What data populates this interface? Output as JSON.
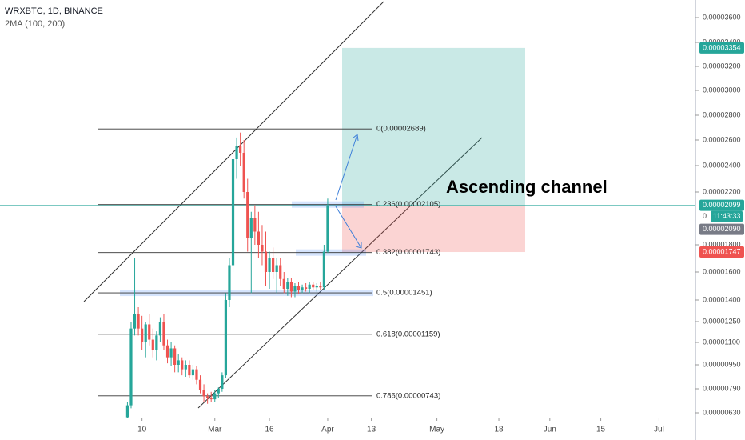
{
  "chart_data": {
    "type": "candlestick",
    "title": "WRXBTC, 1D, BINANCE",
    "subtitle": "2MA (100, 200)",
    "annotation": "Ascending channel",
    "up_color": "#26a69a",
    "down_color": "#ef5350",
    "x": [
      37,
      38,
      39,
      40,
      41,
      42,
      43,
      44,
      45,
      46,
      47,
      48,
      49,
      50,
      51,
      52,
      53,
      54,
      55,
      56,
      57,
      58,
      59,
      60,
      61,
      62,
      63,
      64,
      65,
      66,
      67,
      68,
      69,
      70,
      71,
      72,
      73,
      74,
      75,
      76,
      77,
      78,
      79,
      80,
      81,
      82,
      83,
      84,
      85,
      86,
      87,
      88,
      89,
      90,
      91,
      92
    ],
    "open": [
      6e-06,
      6.8e-06,
      1.2e-05,
      1.3e-05,
      1.2e-05,
      1.1e-05,
      1.23e-05,
      1.12e-05,
      1.05e-05,
      1.15e-05,
      1.25e-05,
      1.08e-05,
      1e-05,
      1.06e-05,
      9.5e-06,
      9.8e-06,
      9.2e-06,
      9.5e-06,
      8.8e-06,
      9.2e-06,
      8.5e-06,
      7.8e-06,
      7.4e-06,
      7.3e-06,
      7.2e-06,
      7.6e-06,
      7.9e-06,
      8.8e-06,
      1.4e-05,
      1.65e-05,
      2.45e-05,
      2.55e-05,
      2.5e-05,
      2.2e-05,
      1.85e-05,
      2e-05,
      1.9e-05,
      1.8e-05,
      1.75e-05,
      1.6e-05,
      1.7e-05,
      1.6e-05,
      1.65e-05,
      1.55e-05,
      1.48e-05,
      1.53e-05,
      1.46e-05,
      1.5e-05,
      1.47e-05,
      1.49e-05,
      1.48e-05,
      1.51e-05,
      1.49e-05,
      1.5e-05,
      1.49e-05,
      1.75e-05
    ],
    "high": [
      7e-06,
      1.25e-05,
      1.7e-05,
      1.35e-05,
      1.29e-05,
      1.25e-05,
      1.3e-05,
      1.2e-05,
      1.18e-05,
      1.28e-05,
      1.3e-05,
      1.12e-05,
      1.1e-05,
      1.08e-05,
      1.02e-05,
      1e-05,
      9.8e-06,
      9.8e-06,
      9.5e-06,
      9.4e-06,
      8.8e-06,
      8.2e-06,
      7.6e-06,
      7.7e-06,
      7.8e-06,
      8e-06,
      9e-06,
      1.45e-05,
      1.7e-05,
      2.5e-05,
      2.62e-05,
      2.66e-05,
      2.6e-05,
      2.3e-05,
      2.05e-05,
      2.1e-05,
      2.05e-05,
      1.95e-05,
      1.9e-05,
      1.75e-05,
      1.78e-05,
      1.7e-05,
      1.7e-05,
      1.6e-05,
      1.56e-05,
      1.56e-05,
      1.52e-05,
      1.53e-05,
      1.51e-05,
      1.52e-05,
      1.53e-05,
      1.53e-05,
      1.52e-05,
      1.53e-05,
      1.8e-05,
      2.15e-05
    ],
    "low": [
      5.6e-06,
      6.6e-06,
      1.15e-05,
      1.15e-05,
      1.05e-05,
      1e-05,
      1.08e-05,
      1e-05,
      9.8e-06,
      1.1e-05,
      1.05e-05,
      9.6e-06,
      9.4e-06,
      9e-06,
      9e-06,
      8.8e-06,
      8.7e-06,
      8.6e-06,
      8.5e-06,
      8.2e-06,
      7.6e-06,
      7e-06,
      6.9e-06,
      7e-06,
      7e-06,
      7.3e-06,
      7.7e-06,
      8.6e-06,
      1.35e-05,
      1.6e-05,
      2.3e-05,
      2.4e-05,
      2.15e-05,
      1.75e-05,
      1.45e-05,
      1.8e-05,
      1.7e-05,
      1.65e-05,
      1.5e-05,
      1.48e-05,
      1.55e-05,
      1.45e-05,
      1.5e-05,
      1.45e-05,
      1.43e-05,
      1.42e-05,
      1.42e-05,
      1.44e-05,
      1.45e-05,
      1.46e-05,
      1.45e-05,
      1.47e-05,
      1.46e-05,
      1.47e-05,
      1.47e-05,
      1.74e-05
    ],
    "close": [
      6.8e-06,
      1.2e-05,
      1.3e-05,
      1.2e-05,
      1.1e-05,
      1.23e-05,
      1.12e-05,
      1.05e-05,
      1.15e-05,
      1.25e-05,
      1.08e-05,
      1e-05,
      1.06e-05,
      9.5e-06,
      9.8e-06,
      9.2e-06,
      9.5e-06,
      8.8e-06,
      9.2e-06,
      8.5e-06,
      7.8e-06,
      7.4e-06,
      7.3e-06,
      7.2e-06,
      7.6e-06,
      7.9e-06,
      8.8e-06,
      1.4e-05,
      1.65e-05,
      2.45e-05,
      2.55e-05,
      2.5e-05,
      2.2e-05,
      1.85e-05,
      2e-05,
      1.9e-05,
      1.8e-05,
      1.75e-05,
      1.6e-05,
      1.7e-05,
      1.6e-05,
      1.65e-05,
      1.55e-05,
      1.48e-05,
      1.53e-05,
      1.46e-05,
      1.5e-05,
      1.47e-05,
      1.49e-05,
      1.48e-05,
      1.51e-05,
      1.49e-05,
      1.5e-05,
      1.49e-05,
      1.75e-05,
      2.099e-05
    ],
    "xlim": [
      2,
      193
    ],
    "xticks": [
      {
        "value": 41,
        "label": "10"
      },
      {
        "value": 61,
        "label": "Mar"
      },
      {
        "value": 76,
        "label": "16"
      },
      {
        "value": 92,
        "label": "Apr"
      },
      {
        "value": 104,
        "label": "13"
      },
      {
        "value": 122,
        "label": "May"
      },
      {
        "value": 139,
        "label": "18"
      },
      {
        "value": 153,
        "label": "Jun"
      },
      {
        "value": 167,
        "label": "15"
      },
      {
        "value": 183,
        "label": "Jul"
      }
    ],
    "ylim": [
      5.98e-06,
      3.742e-05
    ],
    "yticks": [
      {
        "value": 3.6e-05,
        "label": "0.00003600"
      },
      {
        "value": 3.4e-05,
        "label": "0.00003400"
      },
      {
        "value": 3.2e-05,
        "label": "0.00003200"
      },
      {
        "value": 3e-05,
        "label": "0.00003000"
      },
      {
        "value": 2.8e-05,
        "label": "0.00002800"
      },
      {
        "value": 2.6e-05,
        "label": "0.00002600"
      },
      {
        "value": 2.4e-05,
        "label": "0.00002400"
      },
      {
        "value": 2.2e-05,
        "label": "0.00002200"
      },
      {
        "value": 1.8e-05,
        "label": "0.00001800"
      },
      {
        "value": 1.6e-05,
        "label": "0.00001600"
      },
      {
        "value": 1.4e-05,
        "label": "0.00001400"
      },
      {
        "value": 1.25e-05,
        "label": "0.00001250"
      },
      {
        "value": 1.1e-05,
        "label": "0.00001100"
      },
      {
        "value": 9.5e-06,
        "label": "0.00000950"
      },
      {
        "value": 7.9e-06,
        "label": "0.00000790"
      },
      {
        "value": 6.3e-06,
        "label": "0.00000630"
      }
    ],
    "fib_levels": [
      {
        "label": "0(0.00002689)",
        "value": 2.689e-05
      },
      {
        "label": "0.236(0.00002105)",
        "value": 2.105e-05
      },
      {
        "label": "0.382(0.00001743)",
        "value": 1.743e-05
      },
      {
        "label": "0.5(0.00001451)",
        "value": 1.451e-05
      },
      {
        "label": "0.618(0.00001159)",
        "value": 1.159e-05
      },
      {
        "label": "0.786(0.00000743)",
        "value": 7.43e-06
      }
    ],
    "target": {
      "value": 3.354e-05,
      "label": "0.00003354"
    },
    "entry": {
      "value": 2.099e-05,
      "label": "0.00002099"
    },
    "stop": {
      "value": 1.747e-05,
      "label": "0.00001747"
    },
    "previous": {
      "value": 2.09e-05,
      "label": "0.00002090"
    },
    "countdown": "11:43:33",
    "partial_label": "0."
  }
}
